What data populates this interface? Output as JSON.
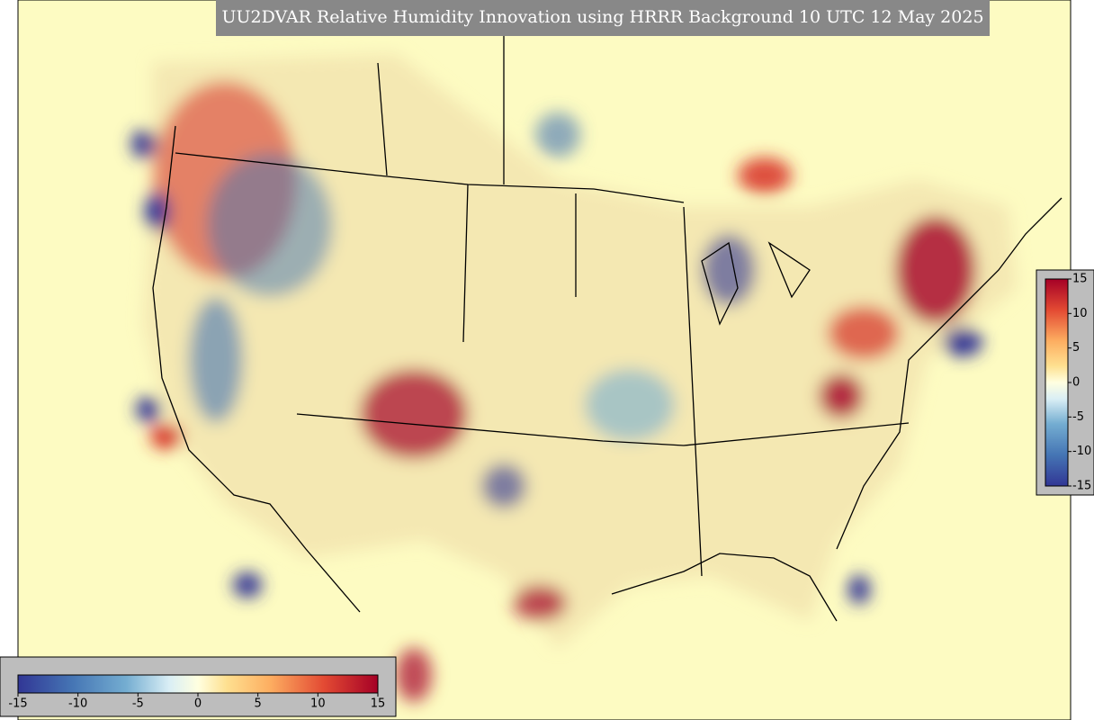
{
  "title": "UU2DVAR Relative Humidity Innovation using HRRR Background 10 UTC 12 May 2025",
  "colorbars": [
    {
      "lim": [
        -15,
        15
      ],
      "ticks": [
        -15,
        -10,
        -5,
        0,
        5,
        10,
        15
      ]
    },
    {
      "lim": [
        -15,
        15
      ],
      "ticks": [
        15,
        10,
        5,
        0,
        -5,
        -10,
        -15
      ]
    }
  ]
}
